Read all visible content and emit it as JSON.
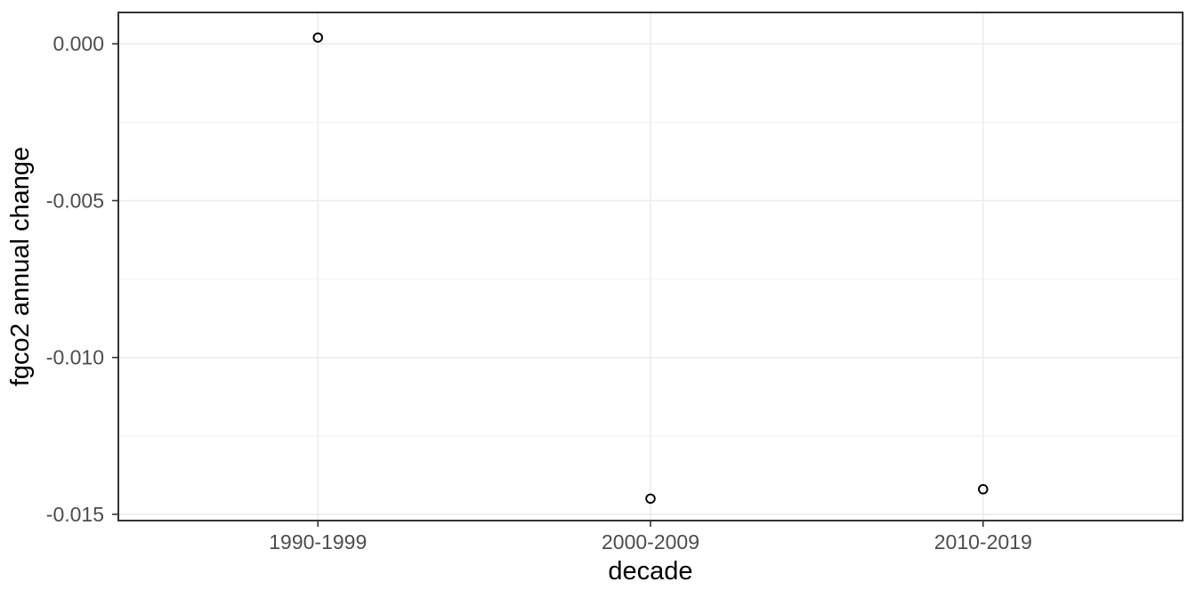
{
  "chart_data": {
    "type": "scatter",
    "title": "",
    "xlabel": "decade",
    "ylabel": "fgco2 annual change",
    "categories": [
      "1990-1999",
      "2000-2009",
      "2010-2019"
    ],
    "values": [
      0.0002,
      -0.0145,
      -0.0142
    ],
    "ylim": [
      -0.0152,
      0.001
    ],
    "y_major_ticks": [
      0,
      -0.005,
      -0.01,
      -0.015
    ],
    "y_tick_labels": [
      "0.000",
      "-0.005",
      "-0.010",
      "-0.015"
    ],
    "y_minor_ticks": [
      -0.0025,
      -0.0075,
      -0.0125
    ],
    "grid": "major-and-minor-horizontal, major-vertical-only",
    "legend_position": "none",
    "point_style": "open-circle",
    "colors": {
      "background": "#ffffff",
      "panel_background": "#ffffff",
      "grid_major": "#ebebeb",
      "grid_minor": "#ededed",
      "panel_border": "#333333",
      "tick_mark": "#333333",
      "tick_label": "#4d4d4d",
      "axis_title": "#000000",
      "point_stroke": "#000000"
    }
  }
}
